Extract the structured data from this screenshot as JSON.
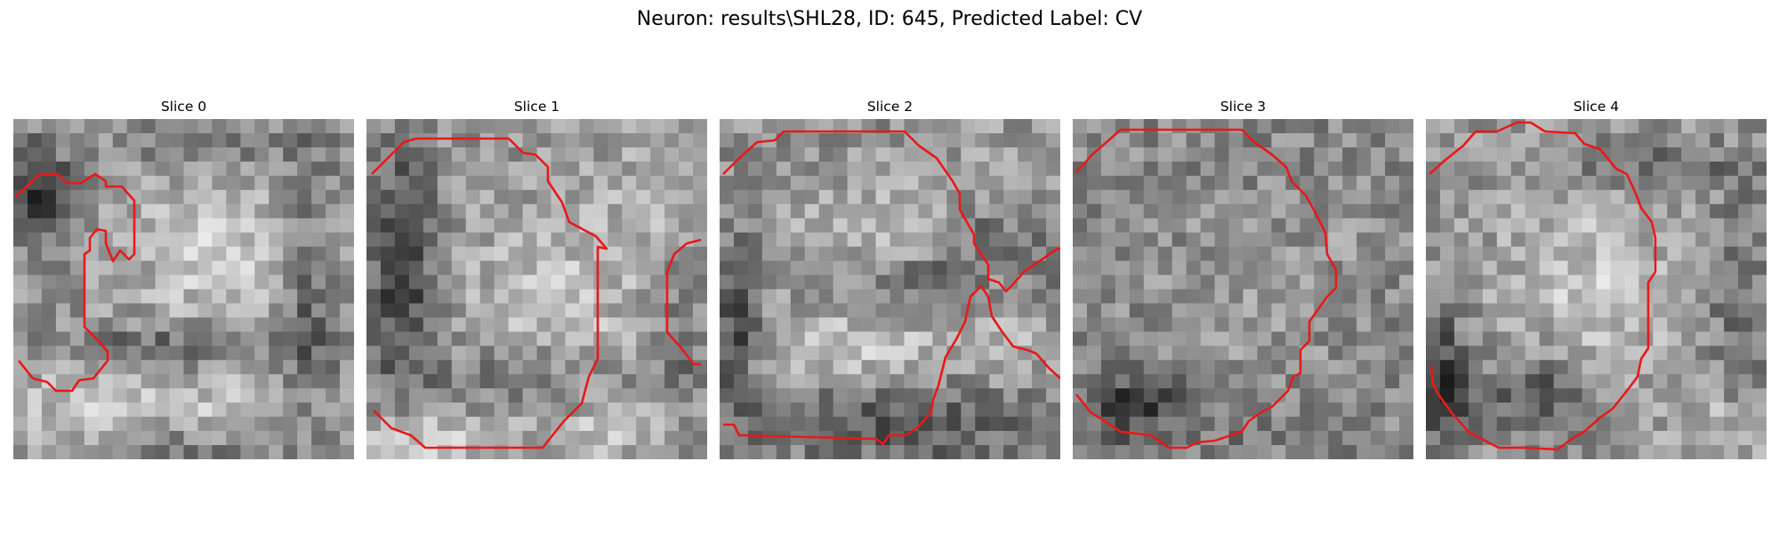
{
  "figure": {
    "title": "Neuron: results\\SHL28, ID: 645, Predicted Label: CV",
    "contour_color": "#e8191a"
  },
  "slices": [
    {
      "title": "Slice 0"
    },
    {
      "title": "Slice 1"
    },
    {
      "title": "Slice 2"
    },
    {
      "title": "Slice 3"
    },
    {
      "title": "Slice 4"
    }
  ]
}
